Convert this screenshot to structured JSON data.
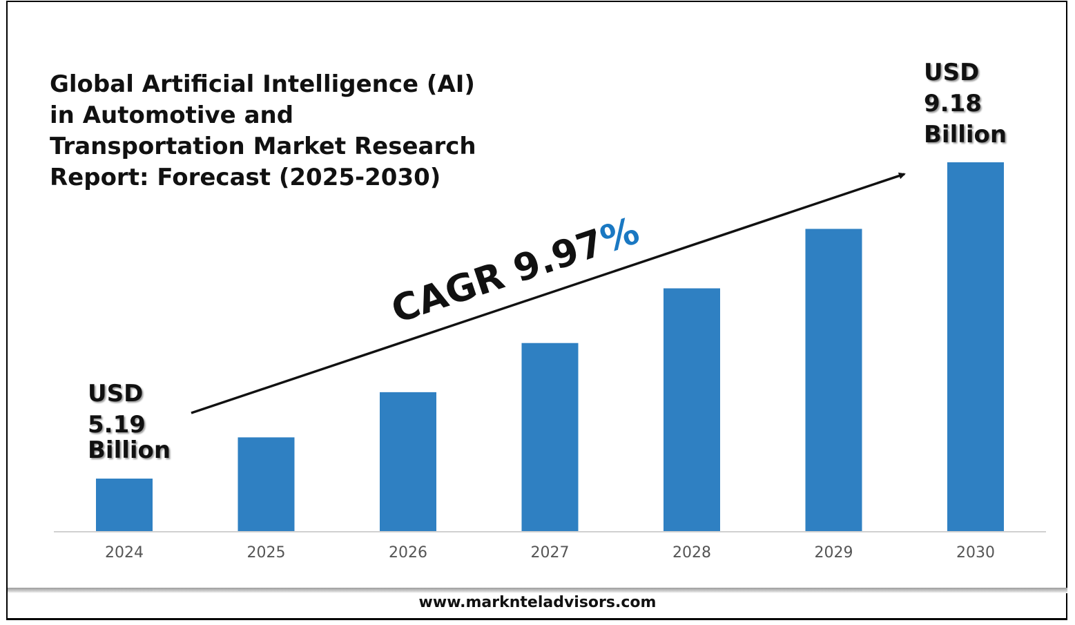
{
  "chart_data": {
    "type": "bar",
    "title": "Global Artificial Intelligence (AI) in Automotive and Transportation Market Research Report: Forecast (2025-2030)",
    "categories": [
      "2024",
      "2025",
      "2026",
      "2027",
      "2028",
      "2029",
      "2030"
    ],
    "values": [
      5.19,
      5.71,
      6.28,
      6.9,
      7.59,
      8.34,
      9.18
    ],
    "unit": "USD Billion",
    "bar_color": "#2f80c2",
    "xlabel": "",
    "ylabel": "",
    "grid": false,
    "annotations": {
      "start_label": [
        "USD",
        "5.19",
        "Billion"
      ],
      "end_label": [
        "USD",
        "9.18",
        "Billion"
      ],
      "cagr_text": "CAGR 9.97",
      "cagr_percent": "%",
      "cagr_percent_color": "#1a78c2"
    }
  },
  "footer": {
    "website": "www.marknteladvisors.com"
  }
}
